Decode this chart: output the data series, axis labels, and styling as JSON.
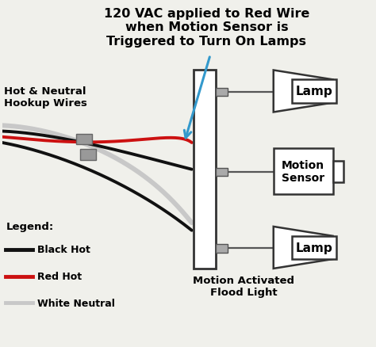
{
  "bg_color": "#f0f0eb",
  "title_text": "120 VAC applied to Red Wire\nwhen Motion Sensor is\nTriggered to Turn On Lamps",
  "title_fontsize": 11.5,
  "hookup_label": "Hot & Neutral\nHookup Wires",
  "legend_label": "Legend:",
  "legend_black": "Black Hot",
  "legend_red": "Red Hot",
  "legend_white": "White Neutral",
  "flood_label": "Motion Activated\nFlood Light",
  "lamp_label": "Lamp",
  "sensor_label": "Motion\nSensor",
  "lamp2_label": "Lamp",
  "arrow_color": "#3399cc",
  "black_wire": "#111111",
  "red_wire": "#cc1111",
  "white_wire": "#c8c8c8",
  "box_color": "#ffffff",
  "box_edge": "#333333",
  "stub_color": "#aaaaaa",
  "conn_color": "#999999"
}
